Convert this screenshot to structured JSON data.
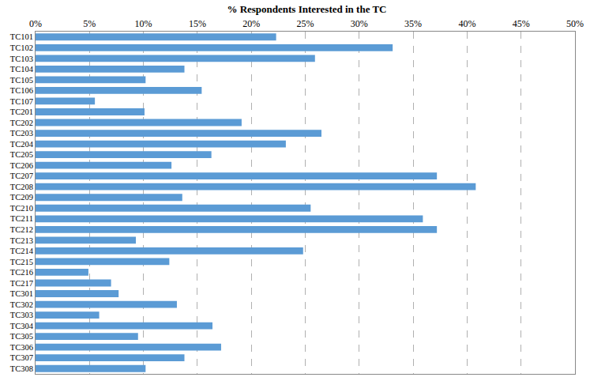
{
  "chart_data": {
    "type": "bar",
    "orientation": "horizontal",
    "title": "% Respondents Interested in the TC",
    "categories": [
      "TC101",
      "TC102",
      "TC103",
      "TC104",
      "TC105",
      "TC106",
      "TC107",
      "TC201",
      "TC202",
      "TC203",
      "TC204",
      "TC205",
      "TC206",
      "TC207",
      "TC208",
      "TC209",
      "TC210",
      "TC211",
      "TC212",
      "TC213",
      "TC214",
      "TC215",
      "TC216",
      "TC217",
      "TC301",
      "TC302",
      "TC303",
      "TC304",
      "TC305",
      "TC306",
      "TC307",
      "TC308"
    ],
    "values": [
      22.3,
      33.1,
      25.9,
      13.8,
      10.2,
      15.4,
      5.5,
      10.1,
      19.1,
      26.5,
      23.2,
      16.3,
      12.6,
      37.2,
      40.8,
      13.6,
      25.5,
      35.9,
      37.2,
      9.3,
      24.8,
      12.4,
      4.9,
      7.0,
      7.7,
      13.1,
      5.9,
      16.4,
      9.5,
      17.2,
      13.8,
      10.2
    ],
    "color": "#5b9bd5",
    "xlim": [
      0,
      50
    ],
    "xticks": [
      {
        "value": 0,
        "label": "0%"
      },
      {
        "value": 5,
        "label": "5%"
      },
      {
        "value": 10,
        "label": "10%"
      },
      {
        "value": 15,
        "label": "15%"
      },
      {
        "value": 20,
        "label": "20%"
      },
      {
        "value": 25,
        "label": "25%"
      },
      {
        "value": 30,
        "label": "30%"
      },
      {
        "value": 35,
        "label": "35%"
      },
      {
        "value": 40,
        "label": "40%"
      },
      {
        "value": 45,
        "label": "45%"
      },
      {
        "value": 50,
        "label": "50%"
      }
    ],
    "grid": true
  }
}
